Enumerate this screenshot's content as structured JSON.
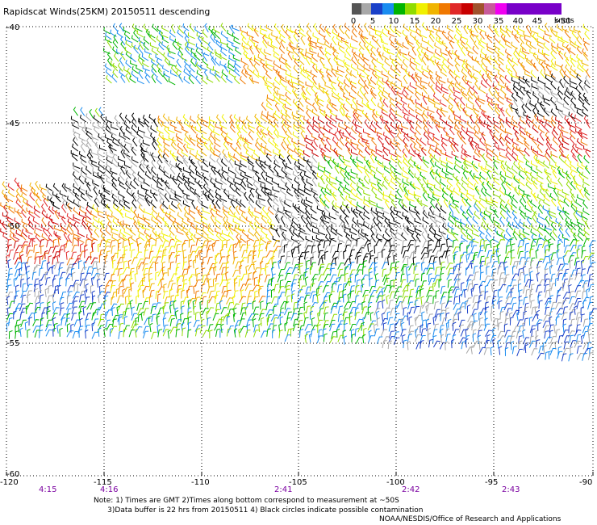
{
  "title": "Rapidscat Winds(25KM) 20150511 descending",
  "legend": {
    "colors": [
      "#555555",
      "#a8a8a8",
      "#1a40c8",
      "#1a8cf0",
      "#00b400",
      "#90dc00",
      "#f0f000",
      "#f0b400",
      "#f07800",
      "#e02828",
      "#c80000",
      "#a0522d",
      "#c85a9a",
      "#f000f0",
      "#7800c8"
    ],
    "labels": [
      "0",
      "5",
      "10",
      "15",
      "20",
      "25",
      "30",
      "35",
      "40",
      "45",
      ">50"
    ],
    "unit": "knots"
  },
  "axes": {
    "lon_ticks": [
      "-120",
      "-115",
      "-110",
      "-105",
      "-100",
      "-95",
      "-90"
    ],
    "lat_ticks": [
      "-40",
      "-45",
      "-50",
      "-55",
      "-60"
    ]
  },
  "times": [
    "4:15",
    "4:16",
    "2:41",
    "2:42",
    "2:43"
  ],
  "notes": {
    "line1": "Note: 1) Times are GMT 2)Times along bottom correspond to measurement at ~50S",
    "line2": "      3)Data buffer is 22 hrs from 20150511 4) Black circles indicate possible contamination"
  },
  "credit": "NOAA/NESDIS/Office of Research and Applications"
}
